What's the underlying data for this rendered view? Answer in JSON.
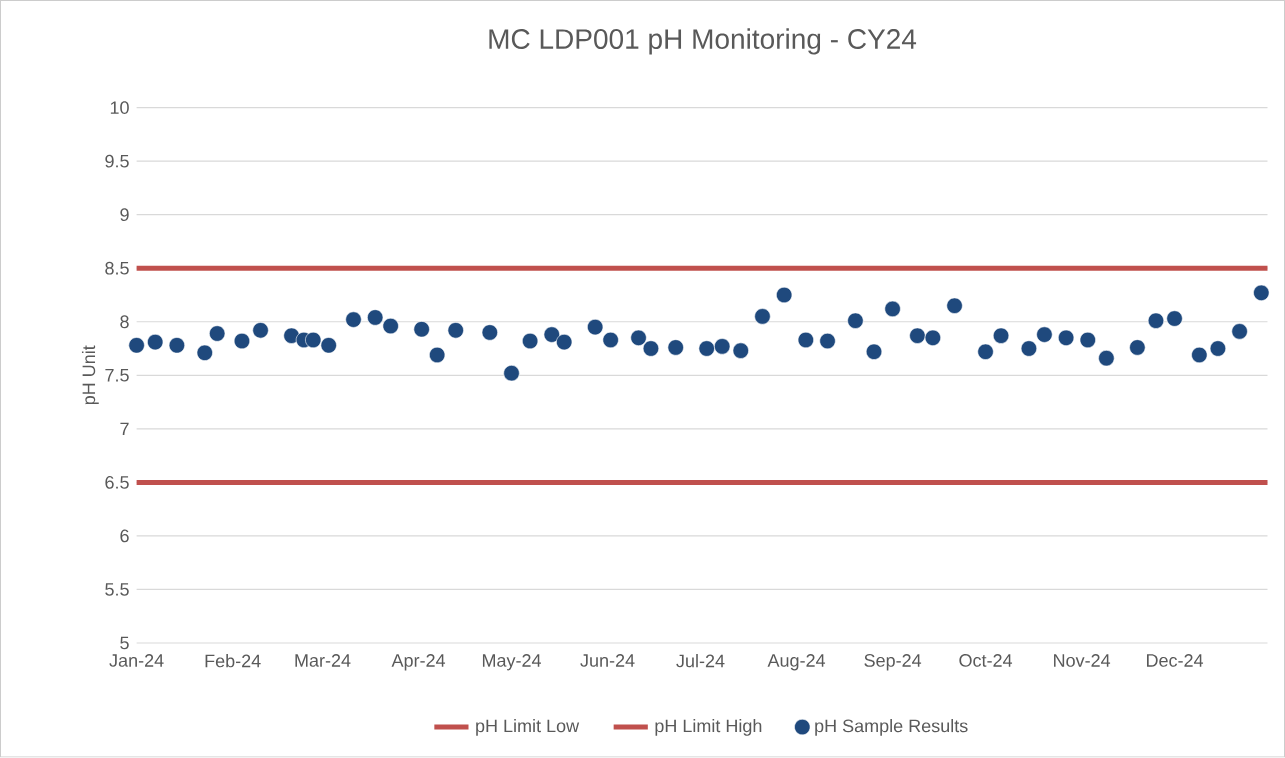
{
  "chart_data": {
    "type": "line",
    "title": "MC LDP001 pH Monitoring - CY24",
    "ylabel": "pH Unit",
    "xlim": [
      "2024-01-01",
      "2024-12-31"
    ],
    "xticks": [
      {
        "value": "2024-01-01",
        "label": "Jan-24"
      },
      {
        "value": "2024-02-01",
        "label": "Feb-24"
      },
      {
        "value": "2024-03-01",
        "label": "Mar-24"
      },
      {
        "value": "2024-04-01",
        "label": "Apr-24"
      },
      {
        "value": "2024-05-01",
        "label": "May-24"
      },
      {
        "value": "2024-06-01",
        "label": "Jun-24"
      },
      {
        "value": "2024-07-01",
        "label": "Jul-24"
      },
      {
        "value": "2024-08-01",
        "label": "Aug-24"
      },
      {
        "value": "2024-09-01",
        "label": "Sep-24"
      },
      {
        "value": "2024-10-01",
        "label": "Oct-24"
      },
      {
        "value": "2024-11-01",
        "label": "Nov-24"
      },
      {
        "value": "2024-12-01",
        "label": "Dec-24"
      }
    ],
    "ylim": [
      5,
      10
    ],
    "yticks": [
      5,
      5.5,
      6,
      6.5,
      7,
      7.5,
      8,
      8.5,
      9,
      9.5,
      10
    ],
    "grid": "y",
    "legend": "bottom",
    "line_style": "solid",
    "series": [
      {
        "name": "pH Limit Low",
        "marker": "none",
        "color": "#c0504d",
        "x": [
          "2024-01-01",
          "2024-12-31"
        ],
        "values": [
          6.5,
          6.5
        ]
      },
      {
        "name": "pH Limit High",
        "marker": "none",
        "color": "#c0504d",
        "x": [
          "2024-01-01",
          "2024-12-31"
        ],
        "values": [
          8.5,
          8.5
        ]
      },
      {
        "name": "pH Sample Results",
        "type": "scatter",
        "marker": "circle",
        "color": "#1f497d",
        "x": [
          "2024-01-01",
          "2024-01-07",
          "2024-01-14",
          "2024-01-23",
          "2024-01-27",
          "2024-02-04",
          "2024-02-10",
          "2024-02-20",
          "2024-02-24",
          "2024-02-27",
          "2024-03-03",
          "2024-03-11",
          "2024-03-18",
          "2024-03-23",
          "2024-04-02",
          "2024-04-07",
          "2024-04-13",
          "2024-04-24",
          "2024-05-01",
          "2024-05-07",
          "2024-05-14",
          "2024-05-18",
          "2024-05-28",
          "2024-06-02",
          "2024-06-11",
          "2024-06-15",
          "2024-06-23",
          "2024-07-03",
          "2024-07-08",
          "2024-07-14",
          "2024-07-21",
          "2024-07-28",
          "2024-08-04",
          "2024-08-11",
          "2024-08-20",
          "2024-08-26",
          "2024-09-01",
          "2024-09-09",
          "2024-09-14",
          "2024-09-21",
          "2024-10-01",
          "2024-10-06",
          "2024-10-15",
          "2024-10-20",
          "2024-10-27",
          "2024-11-03",
          "2024-11-09",
          "2024-11-19",
          "2024-11-25",
          "2024-12-01",
          "2024-12-09",
          "2024-12-15",
          "2024-12-22",
          "2024-12-29"
        ],
        "values": [
          7.78,
          7.81,
          7.78,
          7.71,
          7.89,
          7.82,
          7.92,
          7.87,
          7.83,
          7.83,
          7.78,
          8.02,
          8.04,
          7.96,
          7.93,
          7.69,
          7.92,
          7.9,
          7.52,
          7.82,
          7.88,
          7.81,
          7.95,
          7.83,
          7.85,
          7.75,
          7.76,
          7.75,
          7.77,
          7.73,
          8.05,
          8.25,
          7.83,
          7.82,
          8.01,
          7.72,
          8.12,
          7.87,
          7.85,
          8.15,
          7.72,
          7.87,
          7.75,
          7.88,
          7.85,
          7.83,
          7.66,
          7.76,
          8.01,
          8.03,
          7.69,
          7.75,
          7.91,
          8.27
        ]
      }
    ]
  }
}
